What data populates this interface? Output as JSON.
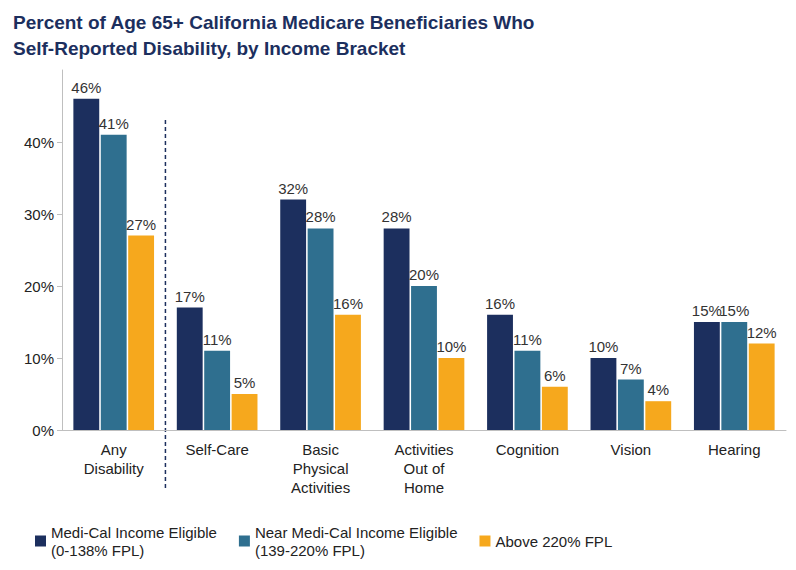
{
  "chart_data": {
    "type": "bar",
    "title": "Percent of Age 65+ California Medicare Beneficiaries Who\nSelf-Reported Disability, by Income Bracket",
    "categories": [
      "Any\nDisability",
      "Self-Care",
      "Basic\nPhysical\nActivities",
      "Activities\nOut of\nHome",
      "Cognition",
      "Vision",
      "Hearing"
    ],
    "series": [
      {
        "name": "Medi-Cal Income Eligible\n(0-138% FPL)",
        "color": "#1c2f5e",
        "values": [
          46,
          17,
          32,
          28,
          16,
          10,
          15
        ],
        "value_labels": [
          "46%",
          "17%",
          "32%",
          "28%",
          "16%",
          "10%",
          "15%"
        ]
      },
      {
        "name": "Near Medi-Cal Income Eligible\n(139-220% FPL)",
        "color": "#2f6f8f",
        "values": [
          41,
          11,
          28,
          20,
          11,
          7,
          15
        ],
        "value_labels": [
          "41%",
          "11%",
          "28%",
          "20%",
          "11%",
          "7%",
          "15%"
        ]
      },
      {
        "name": "Above 220% FPL",
        "color": "#f6a81d",
        "values": [
          27,
          5,
          16,
          10,
          6,
          4,
          12
        ],
        "value_labels": [
          "27%",
          "5%",
          "16%",
          "10%",
          "6%",
          "4%",
          "12%"
        ]
      }
    ],
    "ylim": [
      0,
      50
    ],
    "yticks": [
      {
        "value": 0,
        "label": "0%"
      },
      {
        "value": 10,
        "label": "10%"
      },
      {
        "value": 20,
        "label": "20%"
      },
      {
        "value": 30,
        "label": "30%"
      },
      {
        "value": 40,
        "label": "40%"
      }
    ],
    "grid": false,
    "legend": "bottom",
    "data_labels": true
  }
}
